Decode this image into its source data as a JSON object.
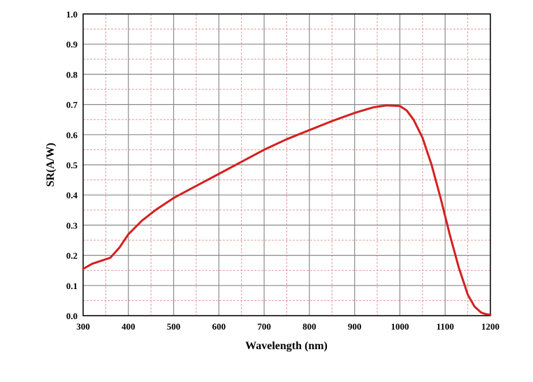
{
  "chart_data": {
    "type": "line",
    "xlabel": "Wavelength (nm)",
    "ylabel": "SR(A/W)",
    "xlim": [
      300,
      1200
    ],
    "ylim": [
      0.0,
      1.0
    ],
    "x_ticks": [
      "300",
      "400",
      "500",
      "600",
      "700",
      "800",
      "900",
      "1000",
      "1100",
      "1200"
    ],
    "y_ticks": [
      "0.0",
      "0.1",
      "0.2",
      "0.3",
      "0.4",
      "0.5",
      "0.6",
      "0.7",
      "0.8",
      "0.9",
      "1.0"
    ],
    "grid": true,
    "series": [
      {
        "color": "#d42020",
        "x": [
          300,
          320,
          340,
          360,
          380,
          400,
          430,
          460,
          500,
          550,
          600,
          650,
          700,
          750,
          800,
          850,
          900,
          940,
          970,
          1000,
          1015,
          1030,
          1050,
          1070,
          1090,
          1110,
          1130,
          1150,
          1165,
          1180,
          1190,
          1200
        ],
        "y": [
          0.155,
          0.172,
          0.182,
          0.192,
          0.225,
          0.27,
          0.315,
          0.35,
          0.39,
          0.43,
          0.47,
          0.51,
          0.55,
          0.585,
          0.615,
          0.645,
          0.672,
          0.69,
          0.697,
          0.695,
          0.68,
          0.65,
          0.59,
          0.5,
          0.39,
          0.27,
          0.16,
          0.07,
          0.03,
          0.01,
          0.005,
          0.003
        ]
      }
    ]
  },
  "colors": {
    "major_grid": "#8a8a8a",
    "minor_grid": "#e39898",
    "axis": "#000000",
    "line": "#d42020"
  }
}
